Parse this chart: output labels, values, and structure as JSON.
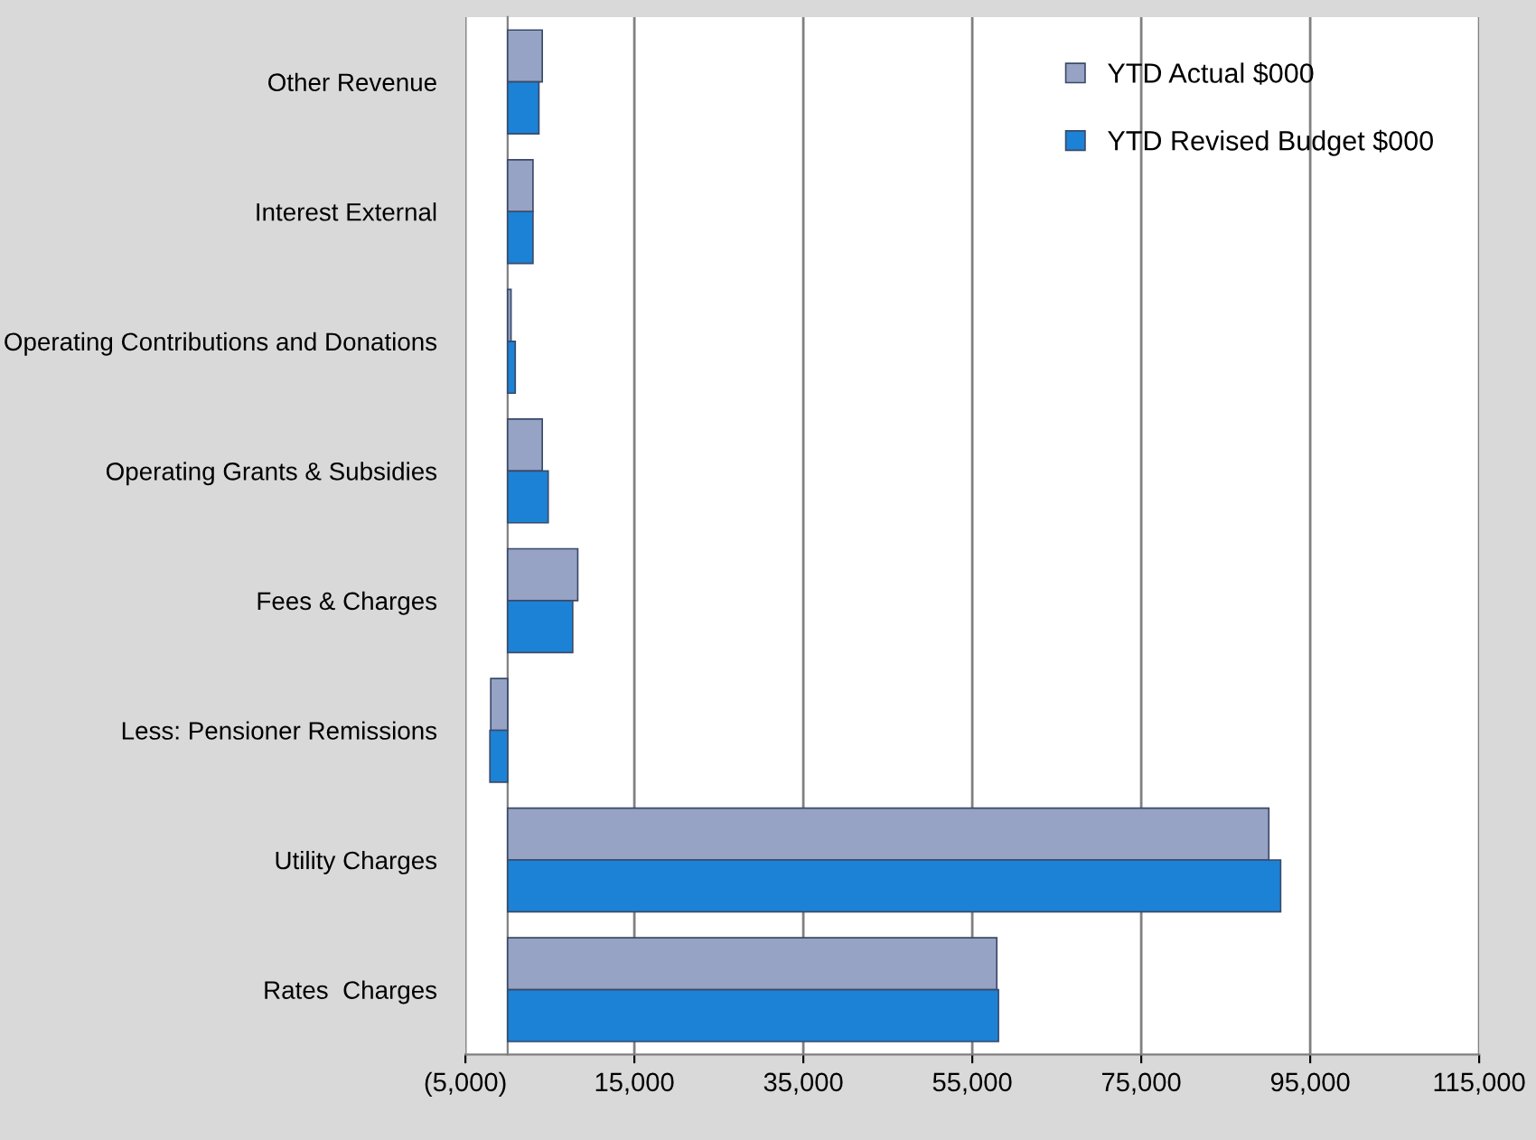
{
  "chart_data": {
    "type": "bar",
    "orientation": "horizontal",
    "categories": [
      "Other Revenue",
      "Interest External",
      "Operating Contributions and Donations",
      "Operating Grants & Subsidies",
      "Fees & Charges",
      "Less: Pensioner Remissions",
      "Utility Charges",
      "Rates  Charges"
    ],
    "series": [
      {
        "name": "YTD Actual $000",
        "color": "#97a3c4",
        "values": [
          4100,
          3000,
          400,
          4100,
          8300,
          -2000,
          90100,
          57900
        ]
      },
      {
        "name": "YTD Revised Budget $000",
        "color": "#1c82d6",
        "values": [
          3700,
          3000,
          900,
          4800,
          7700,
          -2100,
          91500,
          58100
        ]
      }
    ],
    "xlim": [
      -5000,
      115000
    ],
    "xticks": [
      {
        "value": -5000,
        "label": "(5,000)"
      },
      {
        "value": 15000,
        "label": "15,000"
      },
      {
        "value": 35000,
        "label": "35,000"
      },
      {
        "value": 55000,
        "label": "55,000"
      },
      {
        "value": 75000,
        "label": "75,000"
      },
      {
        "value": 95000,
        "label": "95,000"
      },
      {
        "value": 115000,
        "label": "115,000"
      }
    ],
    "grid": "x",
    "legend": "top right"
  }
}
